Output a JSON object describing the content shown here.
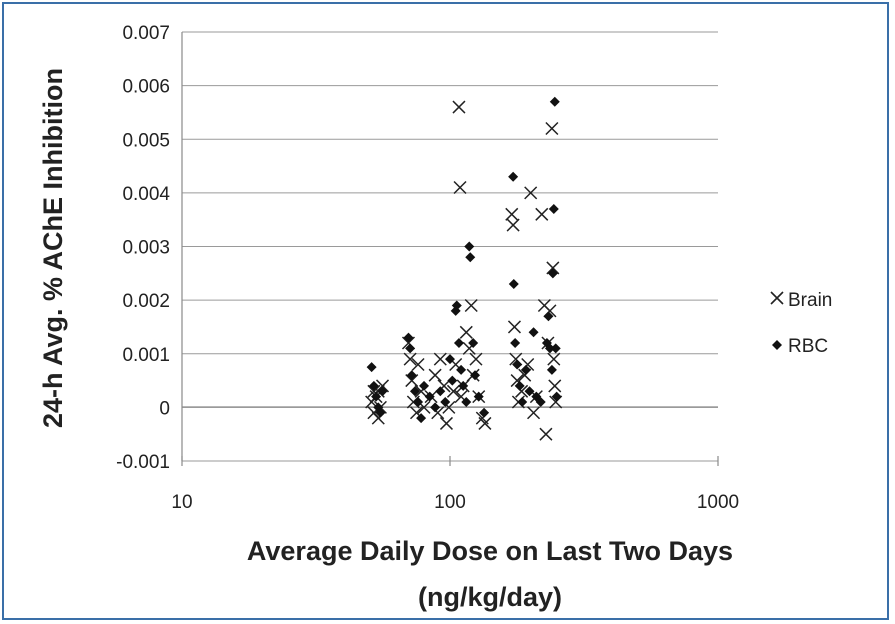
{
  "chart_data": {
    "type": "scatter",
    "title": "",
    "xlabel_line1": "Average Daily Dose on Last Two Days",
    "xlabel_line2": "(ng/kg/day)",
    "ylabel": "24-h Avg. % AChE Inhibition",
    "xscale": "log",
    "xlim": [
      10,
      1000
    ],
    "ylim": [
      -0.001,
      0.007
    ],
    "x_ticks": [
      "10",
      "100",
      "1000"
    ],
    "y_ticks": [
      "0.007",
      "0.006",
      "0.005",
      "0.004",
      "0.003",
      "0.002",
      "0.001",
      "0",
      "-0.001"
    ],
    "grid": "horizontal",
    "legend_position": "right",
    "series": [
      {
        "name": "Brain",
        "marker": "x",
        "color": "#222222",
        "points": [
          [
            51,
            0.0001
          ],
          [
            52,
            -0.0001
          ],
          [
            53,
            0.0002
          ],
          [
            54,
            0.0003
          ],
          [
            55,
            0.0
          ],
          [
            56,
            0.0004
          ],
          [
            52,
            0.0003
          ],
          [
            54,
            -0.0002
          ],
          [
            70,
            0.0012
          ],
          [
            71,
            0.0009
          ],
          [
            72,
            0.0005
          ],
          [
            73,
            0.0001
          ],
          [
            75,
            -0.0001
          ],
          [
            76,
            0.0008
          ],
          [
            78,
            0.0003
          ],
          [
            80,
            0.0
          ],
          [
            85,
            0.0002
          ],
          [
            88,
            0.0006
          ],
          [
            90,
            -0.0001
          ],
          [
            92,
            0.0009
          ],
          [
            95,
            0.0004
          ],
          [
            97,
            -0.0003
          ],
          [
            99,
            0.0
          ],
          [
            103,
            0.0003
          ],
          [
            105,
            0.0008
          ],
          [
            108,
            0.0056
          ],
          [
            109,
            0.0041
          ],
          [
            110,
            0.0002
          ],
          [
            112,
            0.0004
          ],
          [
            115,
            0.0014
          ],
          [
            118,
            0.0011
          ],
          [
            120,
            0.0019
          ],
          [
            122,
            0.0006
          ],
          [
            125,
            0.0009
          ],
          [
            128,
            0.0002
          ],
          [
            132,
            -0.0002
          ],
          [
            135,
            -0.0003
          ],
          [
            170,
            0.0036
          ],
          [
            172,
            0.0034
          ],
          [
            174,
            0.0015
          ],
          [
            176,
            0.0009
          ],
          [
            178,
            0.0005
          ],
          [
            180,
            0.0001
          ],
          [
            185,
            0.0003
          ],
          [
            190,
            0.0006
          ],
          [
            195,
            0.0008
          ],
          [
            200,
            0.004
          ],
          [
            205,
            -0.0001
          ],
          [
            210,
            0.0002
          ],
          [
            220,
            0.0036
          ],
          [
            225,
            0.0019
          ],
          [
            228,
            -0.0005
          ],
          [
            232,
            0.0012
          ],
          [
            236,
            0.0018
          ],
          [
            240,
            0.0052
          ],
          [
            242,
            0.0026
          ],
          [
            244,
            0.0009
          ],
          [
            246,
            0.0004
          ],
          [
            248,
            0.0001
          ]
        ]
      },
      {
        "name": "RBC",
        "marker": "diamond",
        "color": "#111111",
        "points": [
          [
            51,
            0.00075
          ],
          [
            52,
            0.0004
          ],
          [
            53,
            0.0002
          ],
          [
            54,
            0.0
          ],
          [
            55,
            -0.0001
          ],
          [
            56,
            0.0003
          ],
          [
            70,
            0.0013
          ],
          [
            71,
            0.0011
          ],
          [
            72,
            0.0006
          ],
          [
            74,
            0.0003
          ],
          [
            76,
            0.0001
          ],
          [
            78,
            -0.0002
          ],
          [
            80,
            0.0004
          ],
          [
            84,
            0.0002
          ],
          [
            88,
            0.0
          ],
          [
            92,
            0.0003
          ],
          [
            96,
            0.0001
          ],
          [
            100,
            0.0009
          ],
          [
            102,
            0.0005
          ],
          [
            105,
            0.0018
          ],
          [
            106,
            0.0019
          ],
          [
            108,
            0.0012
          ],
          [
            110,
            0.0007
          ],
          [
            112,
            0.0004
          ],
          [
            115,
            0.0001
          ],
          [
            118,
            0.003
          ],
          [
            119,
            0.0028
          ],
          [
            122,
            0.0012
          ],
          [
            124,
            0.0006
          ],
          [
            128,
            0.0002
          ],
          [
            134,
            -0.0001
          ],
          [
            172,
            0.0043
          ],
          [
            173,
            0.0023
          ],
          [
            175,
            0.0012
          ],
          [
            178,
            0.0008
          ],
          [
            182,
            0.0004
          ],
          [
            186,
            0.0001
          ],
          [
            192,
            0.0007
          ],
          [
            198,
            0.0003
          ],
          [
            205,
            0.0014
          ],
          [
            210,
            0.0002
          ],
          [
            218,
            0.0001
          ],
          [
            230,
            0.0012
          ],
          [
            233,
            0.0017
          ],
          [
            236,
            0.0011
          ],
          [
            240,
            0.0007
          ],
          [
            242,
            0.0025
          ],
          [
            244,
            0.0037
          ],
          [
            246,
            0.0057
          ],
          [
            248,
            0.0011
          ],
          [
            250,
            0.0002
          ]
        ]
      }
    ]
  }
}
